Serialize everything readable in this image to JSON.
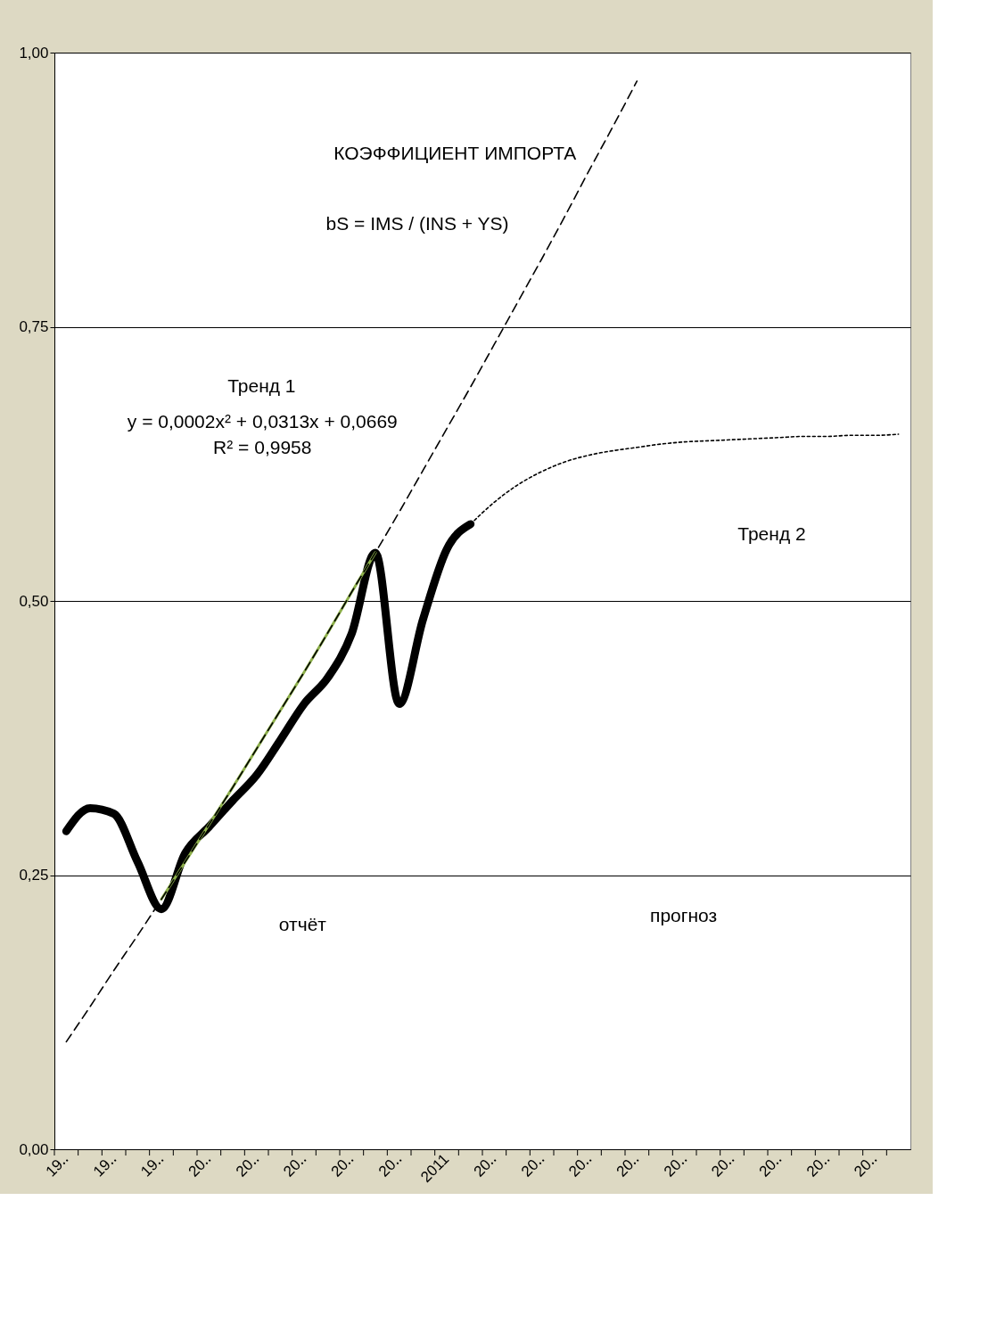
{
  "chart_data": {
    "type": "line",
    "categories": [
      "19‥",
      null,
      "19‥",
      null,
      "19‥",
      null,
      "20‥",
      null,
      "20‥",
      null,
      "20‥",
      null,
      "20‥",
      null,
      "20‥",
      null,
      "2011",
      null,
      "20‥",
      null,
      "20‥",
      null,
      "20‥",
      null,
      "20‥",
      null,
      "20‥",
      null,
      "20‥",
      null,
      "20‥",
      null,
      "20‥",
      null,
      "20‥",
      null
    ],
    "ylim": [
      0,
      1
    ],
    "yticks": [
      {
        "value": 0,
        "label": "0,00"
      },
      {
        "value": 0.25,
        "label": "0,25"
      },
      {
        "value": 0.5,
        "label": "0,50"
      },
      {
        "value": 0.75,
        "label": "0,75"
      },
      {
        "value": 1,
        "label": "1,00"
      }
    ],
    "grid": "y",
    "series": [
      {
        "color": "#000000",
        "line_style": "solid",
        "values": [
          0.29,
          0.311,
          0.306,
          0.262,
          0.219,
          0.27,
          0.294,
          0.318,
          0.341,
          0.373,
          0.406,
          0.43,
          0.47,
          0.544,
          0.406,
          0.483,
          0.547,
          0.57,
          null,
          null,
          null,
          null,
          null,
          null,
          null,
          null,
          null,
          null,
          null,
          null,
          null,
          null,
          null,
          null,
          null,
          null
        ]
      },
      {
        "color": "#8db04a",
        "line_style": "solid",
        "values": [
          null,
          null,
          null,
          null,
          0.228,
          0.262,
          0.296,
          0.33,
          0.365,
          0.4,
          0.435,
          0.471,
          0.508,
          0.544,
          null,
          null,
          null,
          null,
          null,
          null,
          null,
          null,
          null,
          null,
          null,
          null,
          null,
          null,
          null,
          null,
          null,
          null,
          null,
          null,
          null,
          null
        ]
      },
      {
        "color": "#000000",
        "line_style": "dashed",
        "values": [
          0.098,
          0.13,
          0.163,
          0.195,
          0.228,
          0.262,
          0.296,
          0.33,
          0.365,
          0.4,
          0.435,
          0.471,
          0.508,
          0.544,
          0.581,
          0.619,
          0.657,
          0.695,
          0.734,
          0.773,
          0.812,
          0.852,
          0.893,
          0.933,
          0.974,
          null,
          null,
          null,
          null,
          null,
          null,
          null,
          null,
          null,
          null,
          null
        ]
      },
      {
        "color": "#000000",
        "line_style": "dotted",
        "values": [
          null,
          null,
          null,
          null,
          null,
          null,
          null,
          null,
          null,
          null,
          null,
          null,
          null,
          null,
          null,
          null,
          null,
          0.57,
          0.59,
          0.606,
          0.618,
          0.627,
          0.633,
          0.637,
          0.64,
          0.643,
          0.645,
          0.646,
          0.647,
          0.648,
          0.649,
          0.65,
          0.65,
          0.651,
          0.651,
          0.652
        ]
      }
    ],
    "annotations": [
      "КОЭФФИЦИЕНТ ИМПОРТА",
      "bS = IMS / (INS + YS)",
      "Тренд 1",
      "y = 0,0002x² + 0,0313x + 0,0669",
      "R² = 0,9958",
      "Тренд 2",
      "отчёт",
      "прогноз"
    ]
  }
}
